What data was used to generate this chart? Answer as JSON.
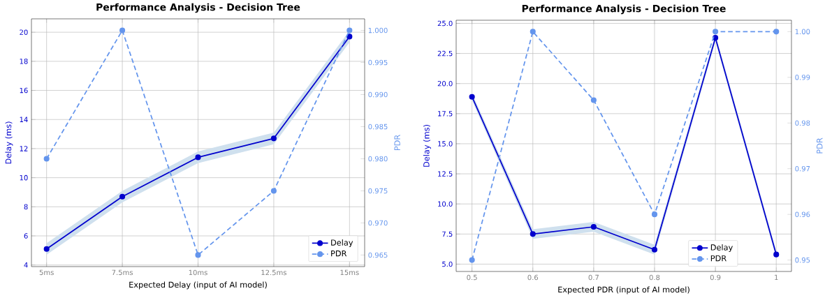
{
  "chart_data": [
    {
      "type": "line",
      "title": "Performance Analysis - Decision Tree",
      "xlabel": "Expected Delay (input of AI model)",
      "ylabel": "Delay (ms)",
      "y2label": "PDR",
      "categories": [
        "5ms",
        "7.5ms",
        "10ms",
        "12.5ms",
        "15ms"
      ],
      "series": [
        {
          "name": "Delay",
          "color": "#0000cd",
          "values": [
            5.1,
            8.7,
            11.4,
            12.7,
            19.7
          ],
          "lower": [
            4.7,
            8.3,
            11.0,
            12.3,
            19.3
          ],
          "upper": [
            5.5,
            9.1,
            11.8,
            13.1,
            20.1
          ],
          "line_style": "solid"
        },
        {
          "name": "PDR",
          "color": "#6495ed",
          "values": [
            0.98,
            1.0,
            0.965,
            0.975,
            1.0
          ],
          "axis": "y2",
          "line_style": "dashed"
        }
      ],
      "ylim": [
        3.89,
        20.92
      ],
      "yticks": [
        4,
        6,
        8,
        10,
        12,
        14,
        16,
        18,
        20
      ],
      "y2lim": [
        0.9632,
        1.0018
      ],
      "y2ticks": [
        0.965,
        {
          "value": 0.97,
          "label": "0.970"
        },
        0.975,
        {
          "value": 0.98,
          "label": "0.980"
        },
        0.985,
        {
          "value": 0.99,
          "label": "0.990"
        },
        0.995,
        {
          "value": 1.0,
          "label": "1.000"
        }
      ],
      "grid": true,
      "legend": "bottom right",
      "marker": "circle"
    },
    {
      "type": "line",
      "title": "Performance Analysis - Decision Tree",
      "xlabel": "Expected PDR (input of AI model)",
      "ylabel": "Delay (ms)",
      "y2label": "PDR",
      "x": [
        0.5,
        0.6,
        0.7,
        0.8,
        0.9,
        1.0
      ],
      "series": [
        {
          "name": "Delay",
          "color": "#0000cd",
          "values": [
            18.9,
            7.5,
            8.1,
            6.2,
            23.8,
            5.8
          ],
          "lower": [
            18.6,
            7.1,
            7.7,
            5.8,
            23.5,
            5.5
          ],
          "upper": [
            19.2,
            7.9,
            8.5,
            6.6,
            24.1,
            6.1
          ],
          "line_style": "solid"
        },
        {
          "name": "PDR",
          "color": "#6495ed",
          "values": [
            0.95,
            1.0,
            0.985,
            0.96,
            1.0,
            1.0
          ],
          "axis": "y2",
          "line_style": "dashed"
        }
      ],
      "xlim": [
        0.474,
        1.025
      ],
      "xticks": [
        0.5,
        0.6,
        0.7,
        0.8,
        0.9,
        {
          "value": 1.0,
          "label": "1"
        }
      ],
      "ylim": [
        4.39,
        25.26
      ],
      "yticks": [
        {
          "value": 5,
          "label": "5.0"
        },
        7.5,
        {
          "value": 10,
          "label": "10.0"
        },
        12.5,
        {
          "value": 15,
          "label": "15.0"
        },
        17.5,
        {
          "value": 20,
          "label": "20.0"
        },
        22.5,
        {
          "value": 25,
          "label": "25.0"
        }
      ],
      "y2lim": [
        0.9475,
        1.0025
      ],
      "y2ticks": [
        0.95,
        0.96,
        0.97,
        0.98,
        0.99,
        {
          "value": 1.0,
          "label": "1.00"
        }
      ],
      "grid": true,
      "legend": "bottom right",
      "marker": "circle"
    }
  ]
}
